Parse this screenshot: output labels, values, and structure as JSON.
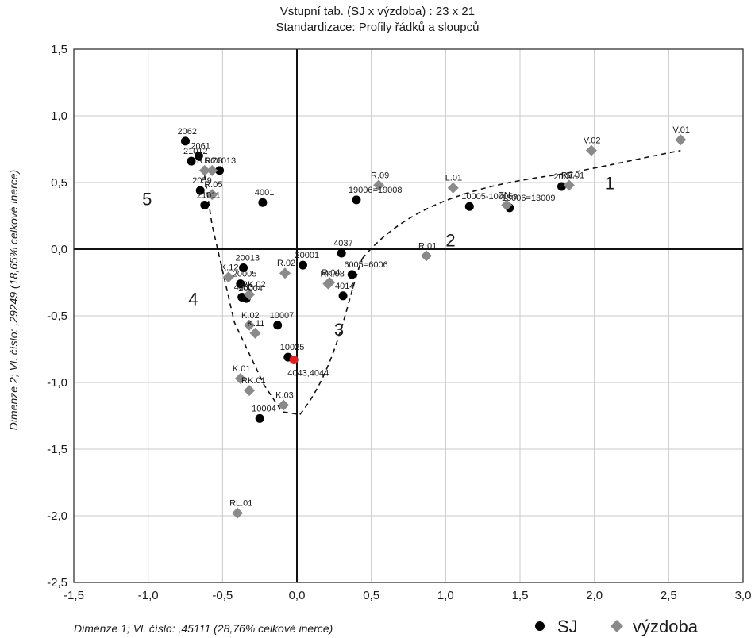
{
  "chart_data": {
    "type": "scatter",
    "title": "Vstupní tab. (SJ x výzdoba) : 23 x 21",
    "subtitle": "Standardizace:   Profily řádků a sloupců",
    "xlabel": "Dimenze  1; Vl. číslo: ,45111 (28,76% celkové inerce)",
    "ylabel": "Dimenze  2; Vl. číslo: ,29249 (18,65% celkové inerce)",
    "xlim": [
      -1.5,
      3.0
    ],
    "ylim": [
      -2.5,
      1.5
    ],
    "xticks": [
      "-1,5",
      "-1,0",
      "-0,5",
      "0,0",
      "0,5",
      "1,0",
      "1,5",
      "2,0",
      "2,5",
      "3,0"
    ],
    "yticks": [
      "1,5",
      "1,0",
      "0,5",
      "0,0",
      "-0,5",
      "-1,0",
      "-1,5",
      "-2,0",
      "-2,5"
    ],
    "grid": true,
    "legend_position": "bottom-right",
    "colors": {
      "SJ": "#000000",
      "výzdoba": "#8a8a8a",
      "highlight": "#e02020"
    },
    "series": [
      {
        "name": "SJ",
        "marker": "circle",
        "points": [
          {
            "label": "2062",
            "x": -0.75,
            "y": 0.81
          },
          {
            "label": "2061",
            "x": -0.66,
            "y": 0.7
          },
          {
            "label": "21012",
            "x": -0.71,
            "y": 0.66
          },
          {
            "label": "21013",
            "x": -0.52,
            "y": 0.59
          },
          {
            "label": "2059",
            "x": -0.65,
            "y": 0.44
          },
          {
            "label": "21011",
            "x": -0.62,
            "y": 0.33
          },
          {
            "label": "4001",
            "x": -0.23,
            "y": 0.35
          },
          {
            "label": "19006=19008",
            "x": 0.4,
            "y": 0.37
          },
          {
            "label": "10005-10005a",
            "x": 1.16,
            "y": 0.32
          },
          {
            "label": "13006=13009",
            "x": 1.43,
            "y": 0.31
          },
          {
            "label": "2004~",
            "x": 1.78,
            "y": 0.47
          },
          {
            "label": "4037",
            "x": 0.3,
            "y": -0.03
          },
          {
            "label": "20001",
            "x": 0.04,
            "y": -0.12
          },
          {
            "label": "20013",
            "x": -0.36,
            "y": -0.14
          },
          {
            "label": "20005",
            "x": -0.38,
            "y": -0.26
          },
          {
            "label": "4033",
            "x": -0.37,
            "y": -0.36
          },
          {
            "label": "20004",
            "x": -0.34,
            "y": -0.37
          },
          {
            "label": "6005=6006",
            "x": 0.37,
            "y": -0.19
          },
          {
            "label": "4014",
            "x": 0.31,
            "y": -0.35
          },
          {
            "label": "10007",
            "x": -0.13,
            "y": -0.57
          },
          {
            "label": "10025",
            "x": -0.06,
            "y": -0.81
          },
          {
            "label": "10004",
            "x": -0.25,
            "y": -1.27
          }
        ]
      },
      {
        "name": "výzdoba",
        "marker": "diamond",
        "points": [
          {
            "label": "R.06",
            "x": -0.62,
            "y": 0.59
          },
          {
            "label": "R.03",
            "x": -0.57,
            "y": 0.59
          },
          {
            "label": "R.05",
            "x": -0.57,
            "y": 0.41
          },
          {
            "label": "R.09",
            "x": 0.55,
            "y": 0.48
          },
          {
            "label": "L.01",
            "x": 1.05,
            "y": 0.46
          },
          {
            "label": "ZN",
            "x": 1.41,
            "y": 0.33
          },
          {
            "label": "RV.01",
            "x": 1.83,
            "y": 0.48
          },
          {
            "label": "V.02",
            "x": 1.98,
            "y": 0.74
          },
          {
            "label": "V.01",
            "x": 2.58,
            "y": 0.82
          },
          {
            "label": "R.01",
            "x": 0.87,
            "y": -0.05
          },
          {
            "label": "K.12",
            "x": -0.46,
            "y": -0.21
          },
          {
            "label": "R.02",
            "x": -0.08,
            "y": -0.18
          },
          {
            "label": "RK.02",
            "x": -0.32,
            "y": -0.34
          },
          {
            "label": "R.04",
            "x": 0.22,
            "y": -0.25
          },
          {
            "label": "RK.08",
            "x": 0.21,
            "y": -0.26
          },
          {
            "label": "K.02",
            "x": -0.32,
            "y": -0.57
          },
          {
            "label": "K.11",
            "x": -0.28,
            "y": -0.63
          },
          {
            "label": "K.01",
            "x": -0.38,
            "y": -0.97
          },
          {
            "label": "RK.01",
            "x": -0.32,
            "y": -1.06
          },
          {
            "label": "K.03",
            "x": -0.09,
            "y": -1.17
          },
          {
            "label": "RL.01",
            "x": -0.4,
            "y": -1.98
          }
        ]
      }
    ],
    "highlight_point": {
      "label": "4043,4044",
      "x": -0.02,
      "y": -0.83
    },
    "cluster_labels": [
      "1",
      "2",
      "3",
      "4",
      "5"
    ]
  }
}
